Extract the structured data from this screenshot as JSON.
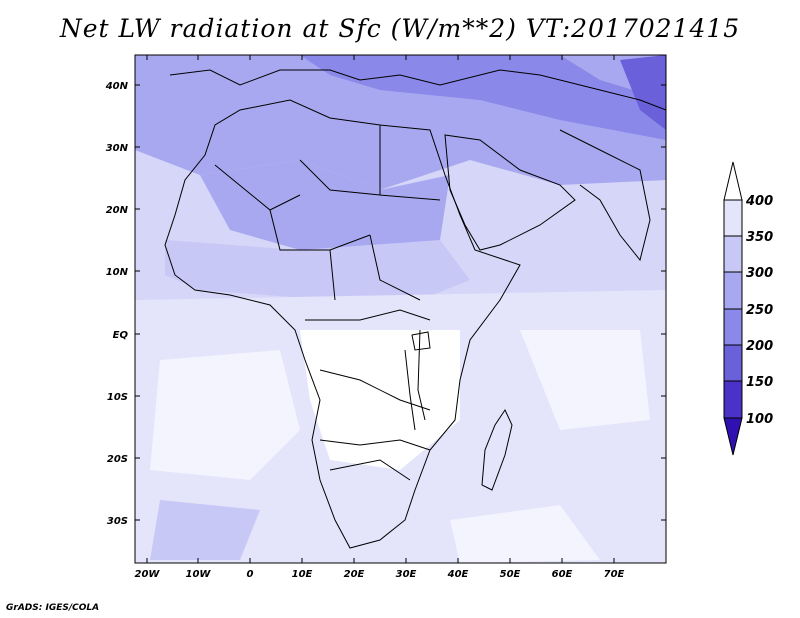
{
  "title": "Net LW radiation at Sfc (W/m**2) VT:2017021415",
  "credit": "GrADS: IGES/COLA",
  "map": {
    "lat_labels": [
      "40N",
      "30N",
      "20N",
      "10N",
      "EQ",
      "10S",
      "20S",
      "30S"
    ],
    "lon_labels": [
      "20W",
      "10W",
      "0",
      "10E",
      "20E",
      "30E",
      "40E",
      "50E",
      "60E",
      "70E"
    ]
  },
  "colorbar": {
    "labels": [
      "400",
      "350",
      "300",
      "250",
      "200",
      "150",
      "100"
    ],
    "colors": [
      "#ffffff",
      "#e4e4fb",
      "#c8c8f6",
      "#a8a8f0",
      "#8a88e8",
      "#6a60da",
      "#4a32c8",
      "#3010b0"
    ]
  }
}
